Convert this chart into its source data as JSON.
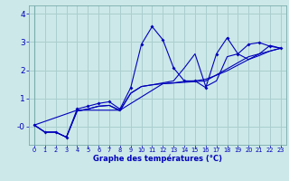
{
  "xlabel": "Graphe des températures (°C)",
  "xlim": [
    -0.5,
    23.5
  ],
  "ylim": [
    -0.65,
    4.3
  ],
  "bg_color": "#cce8e8",
  "grid_color": "#aacece",
  "line_color": "#0000bb",
  "xticks": [
    0,
    1,
    2,
    3,
    4,
    5,
    6,
    7,
    8,
    9,
    10,
    11,
    12,
    13,
    14,
    15,
    16,
    17,
    18,
    19,
    20,
    21,
    22,
    23
  ],
  "yticks": [
    0,
    1,
    2,
    3,
    4
  ],
  "ytick_labels": [
    "-0",
    "1",
    "2",
    "3",
    "4"
  ],
  "series": [
    {
      "x": [
        0,
        1,
        2,
        3,
        4,
        5,
        6,
        7,
        8,
        9,
        10,
        11,
        12,
        13,
        14,
        15,
        16,
        17,
        18,
        19,
        20,
        21,
        22,
        23
      ],
      "y": [
        0.05,
        -0.2,
        -0.2,
        -0.38,
        0.62,
        0.72,
        0.82,
        0.88,
        0.62,
        1.38,
        2.92,
        3.55,
        3.08,
        2.08,
        1.62,
        1.62,
        1.38,
        2.58,
        3.15,
        2.58,
        2.92,
        2.98,
        2.85,
        2.78
      ],
      "marker": true
    },
    {
      "x": [
        0,
        1,
        2,
        3,
        4,
        5,
        6,
        7,
        8,
        9,
        10,
        11,
        12,
        13,
        14,
        15,
        16,
        17,
        18,
        19,
        20,
        21,
        22,
        23
      ],
      "y": [
        0.05,
        -0.2,
        -0.2,
        -0.38,
        0.55,
        0.62,
        0.72,
        0.75,
        0.58,
        1.18,
        1.42,
        1.48,
        1.52,
        1.55,
        1.6,
        1.62,
        1.68,
        1.82,
        1.98,
        2.18,
        2.38,
        2.52,
        2.68,
        2.78
      ],
      "marker": false
    },
    {
      "x": [
        0,
        1,
        2,
        3,
        4,
        5,
        6,
        7,
        8,
        9,
        10,
        11,
        12,
        13,
        14,
        15,
        16,
        17,
        18,
        19,
        20,
        21,
        22,
        23
      ],
      "y": [
        0.05,
        -0.2,
        -0.2,
        -0.38,
        0.55,
        0.62,
        0.72,
        0.75,
        0.55,
        1.18,
        1.42,
        1.48,
        1.55,
        1.62,
        2.08,
        2.58,
        1.42,
        1.62,
        2.48,
        2.58,
        2.38,
        2.58,
        2.88,
        2.78
      ],
      "marker": false
    },
    {
      "x": [
        0,
        4,
        8,
        12,
        16,
        20,
        23
      ],
      "y": [
        0.05,
        0.58,
        0.58,
        1.52,
        1.62,
        2.48,
        2.78
      ],
      "marker": false
    }
  ]
}
